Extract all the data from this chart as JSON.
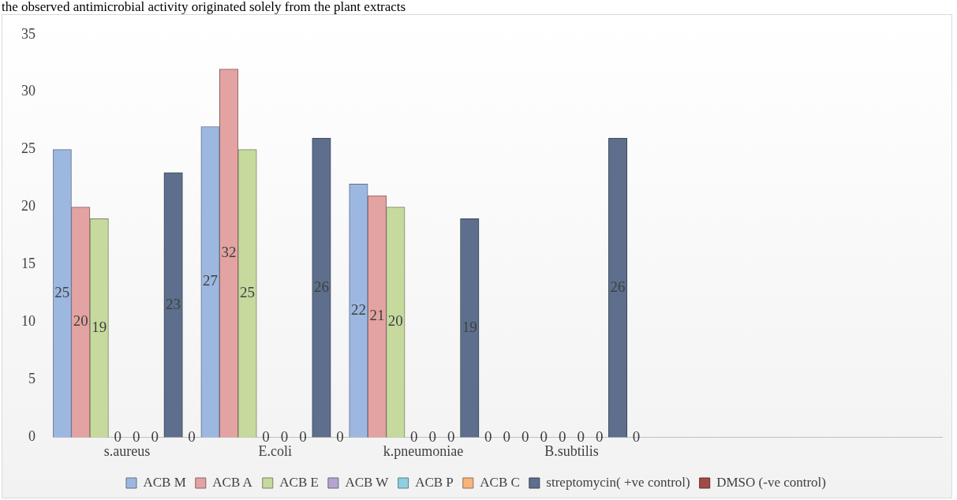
{
  "chart_data": {
    "type": "bar",
    "annotations": [
      "the observed antimicrobial activity originated solely from the plant extracts"
    ],
    "categories": [
      "s.aureus",
      "E.coli",
      "k.pneumoniae",
      "B.subtilis",
      null,
      null
    ],
    "series": [
      {
        "name": "ACB M",
        "color": "#9db8e0",
        "values": [
          25,
          27,
          22,
          0,
          null,
          null
        ]
      },
      {
        "name": "ACB A",
        "color": "#e3a3a2",
        "values": [
          20,
          32,
          21,
          0,
          null,
          null
        ]
      },
      {
        "name": "ACB E",
        "color": "#c6da9e",
        "values": [
          19,
          25,
          20,
          0,
          null,
          null
        ]
      },
      {
        "name": "ACB W",
        "color": "#b6a3d0",
        "values": [
          0,
          0,
          0,
          0,
          null,
          null
        ]
      },
      {
        "name": "ACB P",
        "color": "#8fd0e0",
        "values": [
          0,
          0,
          0,
          0,
          null,
          null
        ]
      },
      {
        "name": "ACB C",
        "color": "#f8b47c",
        "values": [
          0,
          0,
          0,
          0,
          null,
          null
        ]
      },
      {
        "name": "streptomycin( +ve control)",
        "color": "#5d6f8c",
        "values": [
          23,
          26,
          19,
          26,
          null,
          null
        ]
      },
      {
        "name": "DMSO (-ve control)",
        "color": "#a04a48",
        "values": [
          0,
          0,
          0,
          0,
          null,
          null
        ]
      }
    ],
    "ylim": [
      0,
      35
    ],
    "yticks": [
      0,
      5,
      10,
      15,
      20,
      25,
      30,
      35
    ],
    "grid": false,
    "legend": "bottom",
    "data_labels": true
  }
}
